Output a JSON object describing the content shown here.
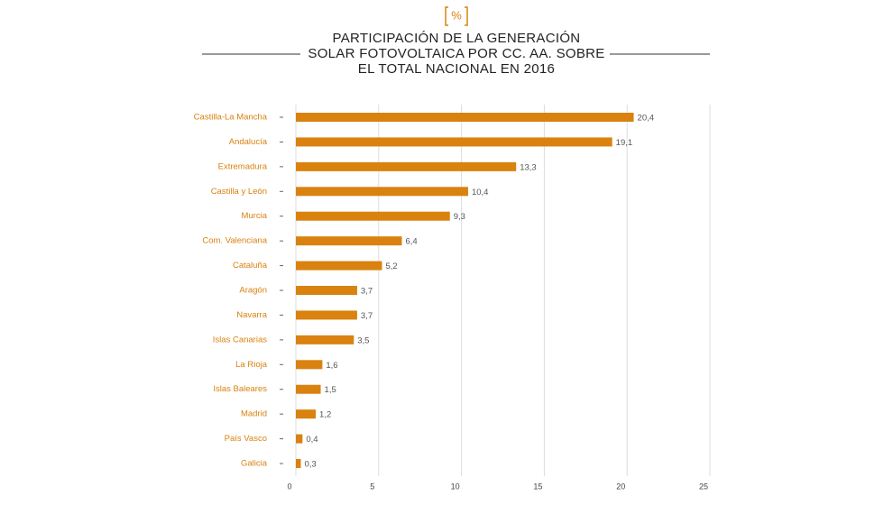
{
  "chart_data": {
    "type": "barh",
    "icon": "%",
    "title_lines": [
      "PARTICIPACIÓN DE LA GENERACIÓN",
      "SOLAR FOTOVOLTAICA POR CC. AA. SOBRE",
      "EL TOTAL NACIONAL EN 2016"
    ],
    "categories": [
      "Castilla-La Mancha",
      "Andalucía",
      "Extremadura",
      "Castilla y León",
      "Murcia",
      "Com. Valenciana",
      "Cataluña",
      "Aragón",
      "Navarra",
      "Islas Canarias",
      "La Rioja",
      "Islas Baleares",
      "Madrid",
      "País Vasco",
      "Galicia"
    ],
    "values": [
      20.4,
      19.1,
      13.3,
      10.4,
      9.3,
      6.4,
      5.2,
      3.7,
      3.7,
      3.5,
      1.6,
      1.5,
      1.2,
      0.4,
      0.3
    ],
    "value_labels": [
      "20,4",
      "19,1",
      "13,3",
      "10,4",
      "9,3",
      "6,4",
      "5,2",
      "3,7",
      "3,7",
      "3,5",
      "1,6",
      "1,5",
      "1,2",
      "0,4",
      "0,3"
    ],
    "color": "#d9820f",
    "xlim": [
      0,
      25
    ],
    "xticks": [
      0,
      5,
      10,
      15,
      20,
      25
    ],
    "grid": true
  }
}
